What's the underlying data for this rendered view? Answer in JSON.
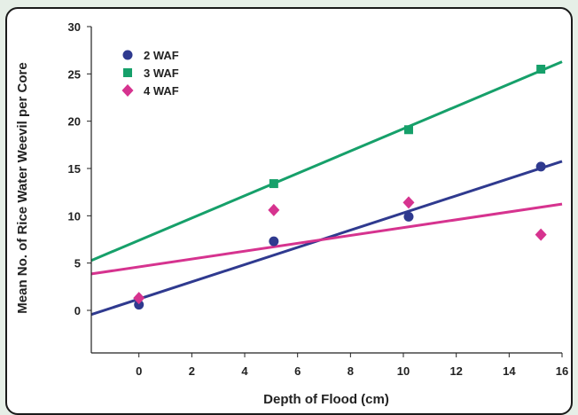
{
  "chart_data": {
    "type": "scatter",
    "title": "",
    "xlabel": "Depth of Flood (cm)",
    "ylabel": "Mean No. of Rice Water Weevil per Core",
    "xlim": [
      -1.8,
      16
    ],
    "ylim": [
      -4.5,
      30
    ],
    "x_ticks": [
      0,
      2,
      4,
      6,
      8,
      10,
      12,
      14,
      16
    ],
    "y_ticks": [
      0,
      5,
      10,
      15,
      20,
      25,
      30
    ],
    "grid": false,
    "legend_position": "top-left",
    "series": [
      {
        "name": "2 WAF",
        "marker": "circle",
        "color": "#2f3a8f",
        "points": [
          [
            0,
            0.6
          ],
          [
            5.1,
            7.3
          ],
          [
            10.2,
            9.9
          ],
          [
            15.2,
            15.2
          ]
        ],
        "trend": {
          "slope": 0.91,
          "intercept": 1.2
        }
      },
      {
        "name": "3 WAF",
        "marker": "square",
        "color": "#16a06a",
        "points": [
          [
            5.1,
            13.4
          ],
          [
            10.2,
            19.1
          ],
          [
            15.2,
            25.5
          ]
        ],
        "trend": {
          "slope": 1.18,
          "intercept": 7.4
        }
      },
      {
        "name": "4 WAF",
        "marker": "diamond",
        "color": "#d6338f",
        "points": [
          [
            0,
            1.3
          ],
          [
            5.1,
            10.6
          ],
          [
            10.2,
            11.4
          ],
          [
            15.2,
            8.0
          ]
        ],
        "trend": {
          "slope": 0.415,
          "intercept": 4.6
        }
      }
    ]
  }
}
